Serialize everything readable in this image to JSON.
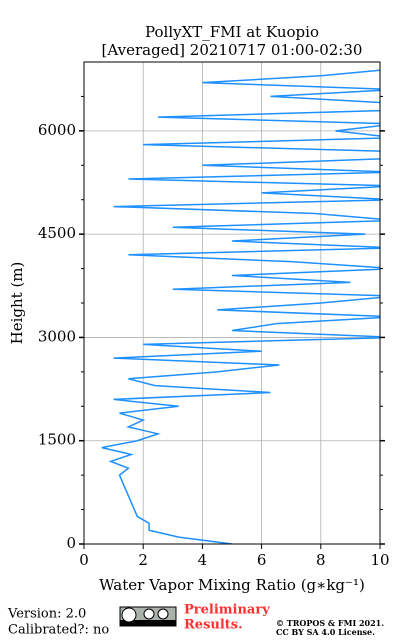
{
  "chart_data": {
    "type": "line",
    "title": [
      "PollyXT_FMI at Kuopio",
      "[Averaged] 20210717 01:00-02:30"
    ],
    "x_label": "Water Vapor Mixing Ratio (g∗kg⁻¹)",
    "y_label": "Height (m)",
    "y": [
      0,
      100,
      200,
      300,
      400,
      500,
      600,
      700,
      800,
      900,
      1000,
      1100,
      1200,
      1300,
      1400,
      1500,
      1600,
      1700,
      1800,
      1900,
      2000,
      2100,
      2200,
      2300,
      2400,
      2500,
      2600,
      2700,
      2800,
      2900,
      3000,
      3100,
      3200,
      3300,
      3400,
      3500,
      3600,
      3700,
      3800,
      3900,
      4000,
      4100,
      4200,
      4300,
      4400,
      4500,
      4600,
      4700,
      4800,
      4900,
      5000,
      5100,
      5200,
      5300,
      5400,
      5500,
      5600,
      5700,
      5800,
      5900,
      6000,
      6100,
      6200,
      6300,
      6400,
      6500,
      6600,
      6700,
      6800,
      6900,
      7000
    ],
    "series": [
      {
        "name": "Water vapor mixing ratio",
        "color": "#1e90ff",
        "values": [
          5.0,
          3.2,
          2.2,
          2.2,
          1.8,
          1.7,
          1.6,
          1.5,
          1.4,
          1.3,
          1.2,
          1.5,
          0.9,
          1.6,
          0.6,
          1.8,
          2.5,
          1.5,
          2.0,
          1.2,
          3.2,
          1.0,
          6.3,
          2.4,
          1.5,
          4.5,
          6.6,
          1.0,
          6.0,
          2.0,
          10.5,
          5.0,
          6.5,
          10.5,
          4.5,
          8.0,
          10.5,
          3.0,
          9.0,
          5.0,
          10.5,
          7.0,
          1.5,
          10.5,
          5.0,
          9.5,
          3.0,
          10.5,
          7.8,
          1.0,
          10.5,
          6.0,
          10.5,
          1.5,
          10.5,
          4.0,
          10.5,
          10.5,
          2.0,
          10.5,
          8.5,
          10.5,
          2.5,
          10.5,
          10.5,
          6.3,
          10.5,
          4.0,
          8.0,
          10.5,
          10.5
        ]
      }
    ],
    "xlim": [
      0,
      10
    ],
    "xticks": [
      0,
      2,
      4,
      6,
      8,
      10
    ],
    "ylim": [
      0,
      7000
    ],
    "yticks": [
      0,
      1500,
      3000,
      4500,
      6000
    ],
    "yminorticks": [
      500,
      1000,
      2000,
      2500,
      3500,
      4000,
      5000,
      5500,
      6500
    ],
    "grid": true
  },
  "footer": {
    "version": "Version: 2.0",
    "calibrated": "Calibrated?: no",
    "preliminary": [
      "Preliminary",
      "Results."
    ],
    "copyright": [
      "© TROPOS & FMI 2021.",
      "CC BY SA 4.0 License."
    ]
  }
}
